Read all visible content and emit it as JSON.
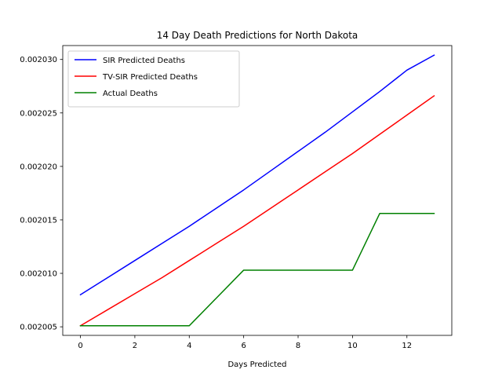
{
  "chart_data": {
    "type": "line",
    "title": "14 Day Death Predictions for North Dakota",
    "xlabel": "Days Predicted",
    "ylabel": "",
    "x": [
      0,
      1,
      2,
      3,
      4,
      5,
      6,
      7,
      8,
      9,
      10,
      11,
      12,
      13
    ],
    "xlim": [
      -0.65,
      13.65
    ],
    "ylim": [
      0.0020042,
      0.0020313
    ],
    "xticks": [
      0,
      2,
      4,
      6,
      8,
      10,
      12
    ],
    "xtick_labels": [
      "0",
      "2",
      "4",
      "6",
      "8",
      "10",
      "12"
    ],
    "yticks": [
      0.002005,
      0.00201,
      0.002015,
      0.00202,
      0.002025,
      0.00203
    ],
    "ytick_labels": [
      "0.002005",
      "0.002010",
      "0.002015",
      "0.002020",
      "0.002025",
      "0.002030"
    ],
    "grid": false,
    "legend": "upper left",
    "series": [
      {
        "name": "SIR Predicted Deaths",
        "color": "#0000ff",
        "values": [
          0.002008,
          0.0020096,
          0.0020112,
          0.0020128,
          0.0020144,
          0.0020161,
          0.0020178,
          0.0020196,
          0.0020214,
          0.0020232,
          0.0020251,
          0.002027,
          0.002029,
          0.0020304
        ]
      },
      {
        "name": "TV-SIR Predicted Deaths",
        "color": "#ff0000",
        "values": [
          0.0020051,
          0.0020066,
          0.0020081,
          0.0020096,
          0.0020112,
          0.0020128,
          0.0020144,
          0.0020161,
          0.0020178,
          0.0020195,
          0.0020212,
          0.002023,
          0.0020248,
          0.0020266
        ]
      },
      {
        "name": "Actual Deaths",
        "color": "#008000",
        "values": [
          0.0020051,
          0.0020051,
          0.0020051,
          0.0020051,
          0.0020051,
          0.0020077,
          0.0020103,
          0.0020103,
          0.0020103,
          0.0020103,
          0.0020103,
          0.0020156,
          0.0020156,
          0.0020156
        ]
      }
    ]
  }
}
